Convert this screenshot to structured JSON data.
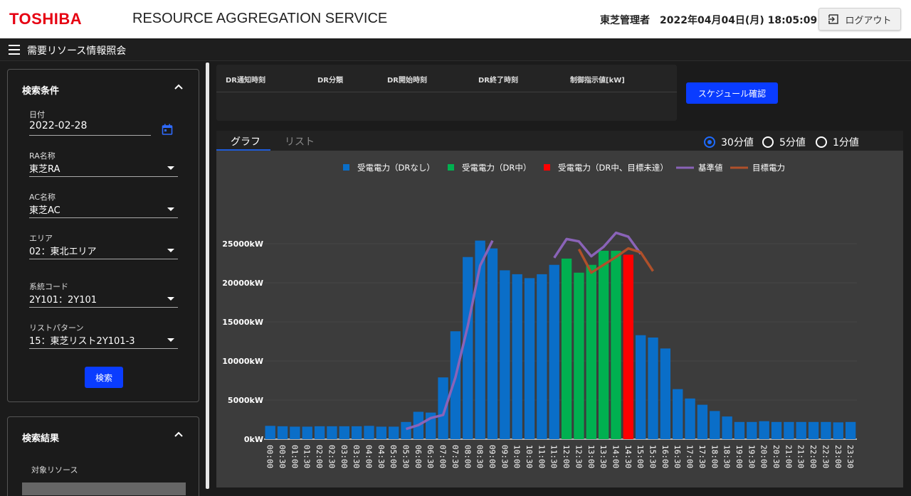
{
  "header": {
    "logo": "TOSHIBA",
    "app_title": "RESOURCE AGGREGATION SERVICE",
    "user": "東芝管理者",
    "datetime": "2022年04月04日(月) 18:05:09",
    "logout_label": "ログアウト"
  },
  "subbar": {
    "page_title": "需要リソース情報照会"
  },
  "search_panel": {
    "title": "検索条件",
    "date_label": "日付",
    "date_value": "2022-02-28",
    "ra_label": "RA名称",
    "ra_value": "東芝RA",
    "ac_label": "AC名称",
    "ac_value": "東芝AC",
    "area_label": "エリア",
    "area_value": "02：東北エリア",
    "code_label": "系統コード",
    "code_value": "2Y101：2Y101",
    "pattern_label": "リストパターン",
    "pattern_value": "15：東芝リスト2Y101-3",
    "search_button": "検索"
  },
  "results_panel": {
    "title": "検索結果",
    "subtitle": "対象リソース"
  },
  "dr_table": {
    "headers": [
      "DR通知時刻",
      "DR分類",
      "DR開始時刻",
      "DR終了時刻",
      "制御指示値[kW]"
    ]
  },
  "schedule_button": "スケジュール確認",
  "tabs": {
    "graph": "グラフ",
    "list": "リスト"
  },
  "intervals": [
    {
      "label": "30分値",
      "selected": true
    },
    {
      "label": "5分値",
      "selected": false
    },
    {
      "label": "1分値",
      "selected": false
    }
  ],
  "colors": {
    "dr_none": "#0a6ec8",
    "dr_active": "#00b050",
    "dr_missed": "#ff0000",
    "baseline": "#8a63b8",
    "target": "#b0502a"
  },
  "chart_data": {
    "type": "bar",
    "legend": [
      {
        "key": "dr_none",
        "label": "受電電力（DRなし）"
      },
      {
        "key": "dr_active",
        "label": "受電電力（DR中）"
      },
      {
        "key": "dr_missed",
        "label": "受電電力（DR中、目標未達）"
      },
      {
        "key": "baseline",
        "label": "基準値"
      },
      {
        "key": "target",
        "label": "目標電力"
      }
    ],
    "categories": [
      "00:00",
      "00:30",
      "01:00",
      "01:30",
      "02:00",
      "02:30",
      "03:00",
      "03:30",
      "04:00",
      "04:30",
      "05:00",
      "05:30",
      "06:00",
      "06:30",
      "07:00",
      "07:30",
      "08:00",
      "08:30",
      "09:00",
      "09:30",
      "10:00",
      "10:30",
      "11:00",
      "11:30",
      "12:00",
      "12:30",
      "13:00",
      "13:30",
      "14:00",
      "14:30",
      "15:00",
      "15:30",
      "16:00",
      "16:30",
      "17:00",
      "17:30",
      "18:00",
      "18:30",
      "19:00",
      "19:30",
      "20:00",
      "20:30",
      "21:00",
      "21:30",
      "22:00",
      "22:30",
      "23:00",
      "23:30"
    ],
    "values": [
      1700,
      1650,
      1600,
      1600,
      1650,
      1650,
      1650,
      1650,
      1700,
      1600,
      1600,
      2200,
      3500,
      3400,
      7900,
      13800,
      23300,
      25400,
      24400,
      21600,
      21100,
      20600,
      21100,
      22300,
      23100,
      21300,
      22300,
      24100,
      24100,
      23600,
      13300,
      13000,
      11600,
      6400,
      5200,
      4400,
      3600,
      2900,
      2200,
      2200,
      2300,
      2200,
      2200,
      2200,
      2200,
      2200,
      2150,
      2200
    ],
    "status": [
      "none",
      "none",
      "none",
      "none",
      "none",
      "none",
      "none",
      "none",
      "none",
      "none",
      "none",
      "none",
      "none",
      "none",
      "none",
      "none",
      "none",
      "none",
      "none",
      "none",
      "none",
      "none",
      "none",
      "none",
      "active",
      "active",
      "active",
      "active",
      "active",
      "missed",
      "none",
      "none",
      "none",
      "none",
      "none",
      "none",
      "none",
      "none",
      "none",
      "none",
      "none",
      "none",
      "none",
      "none",
      "none",
      "none",
      "none",
      "none"
    ],
    "baseline": [
      null,
      null,
      null,
      null,
      null,
      null,
      null,
      null,
      null,
      null,
      null,
      1300,
      1800,
      2700,
      3100,
      7900,
      14500,
      22200,
      25400,
      null,
      null,
      null,
      null,
      23200,
      25600,
      25300,
      23400,
      24600,
      26400,
      25900,
      23700
    ],
    "target": [
      null,
      null,
      null,
      null,
      null,
      null,
      null,
      null,
      null,
      null,
      null,
      null,
      null,
      null,
      null,
      null,
      null,
      null,
      null,
      null,
      null,
      null,
      null,
      null,
      null,
      24300,
      21300,
      22300,
      23300,
      24400,
      23900,
      21500
    ],
    "ylim": [
      0,
      30000
    ],
    "yticks": [
      0,
      5000,
      10000,
      15000,
      20000,
      25000
    ],
    "ytick_labels": [
      "0kW",
      "5000kW",
      "10000kW",
      "15000kW",
      "20000kW",
      "25000kW"
    ]
  }
}
